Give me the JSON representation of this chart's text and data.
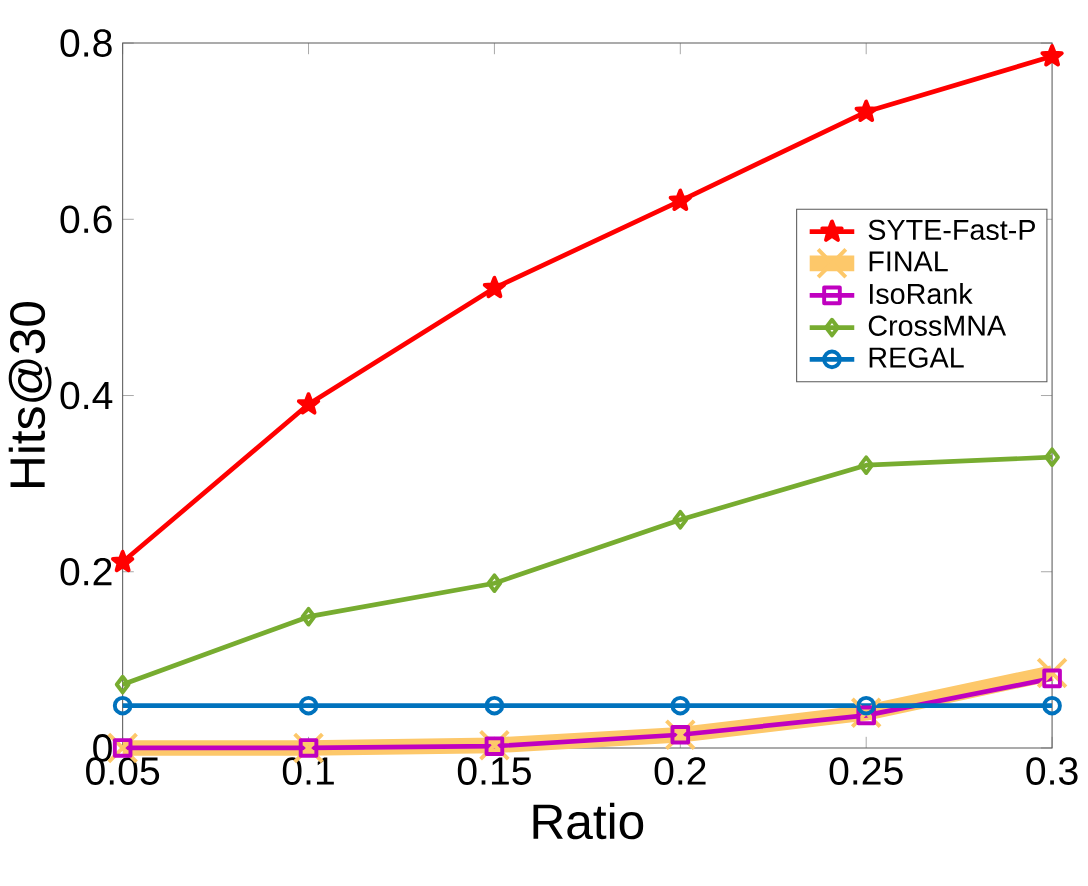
{
  "chart_data": {
    "type": "line",
    "xlabel": "Ratio",
    "ylabel": "Hits@30",
    "x": [
      0.05,
      0.1,
      0.15,
      0.2,
      0.25,
      0.3
    ],
    "xlim": [
      0.05,
      0.3
    ],
    "xticks": [
      0.05,
      0.1,
      0.15,
      0.2,
      0.25,
      0.3
    ],
    "ylim": [
      0,
      0.8
    ],
    "yticks": [
      0,
      0.2,
      0.4,
      0.6,
      0.8
    ],
    "grid": false,
    "legend": "right",
    "line_style": "solid",
    "series": [
      {
        "name": "SYTE-Fast-P",
        "color": "#ff0000",
        "marker": "star",
        "values": [
          0.211,
          0.39,
          0.522,
          0.621,
          0.722,
          0.785
        ]
      },
      {
        "name": "FINAL",
        "color": "#fdc86a",
        "marker": "cross",
        "values": [
          0,
          0,
          0.003,
          0.015,
          0.04,
          0.085
        ]
      },
      {
        "name": "IsoRank",
        "color": "#c000c0",
        "marker": "square",
        "values": [
          0,
          0,
          0.002,
          0.015,
          0.037,
          0.079
        ]
      },
      {
        "name": "CrossMNA",
        "color": "#77ac30",
        "marker": "diamond",
        "values": [
          0.072,
          0.149,
          0.187,
          0.259,
          0.321,
          0.33
        ]
      },
      {
        "name": "REGAL",
        "color": "#0072bd",
        "marker": "circle",
        "values": [
          0.048,
          0.048,
          0.048,
          0.048,
          0.048,
          0.048
        ]
      }
    ]
  }
}
